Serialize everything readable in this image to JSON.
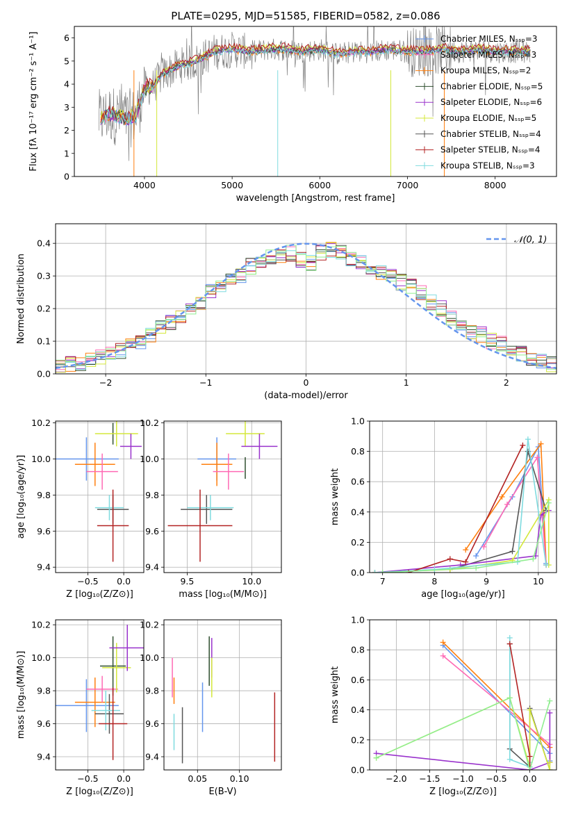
{
  "chart_data": [
    {
      "type": "line",
      "title": "PLATE=0295, MJD=51585, FIBERID=0582, z=0.086",
      "xlabel": "wavelength [Angstrom, rest frame]",
      "ylabel": "Flux [fλ 10⁻¹⁷ erg cm⁻² s⁻¹ A⁻¹]",
      "xlim": [
        3200,
        8700
      ],
      "ylim": [
        0,
        6.5
      ],
      "xticks": [
        4000,
        5000,
        6000,
        7000,
        8000
      ],
      "yticks": [
        0,
        1,
        2,
        3,
        4,
        5,
        6
      ],
      "grid": false,
      "legend_position": "right",
      "data_series": {
        "name": "",
        "color": "#808080",
        "x": [
          3500,
          3600,
          3700,
          3800,
          3900,
          4000,
          4100,
          4200,
          4400,
          4600,
          4800,
          5000,
          5200,
          5400,
          5600,
          5800,
          6000,
          6200,
          6400,
          6600,
          6800,
          7000,
          7200,
          7400,
          7600,
          7800,
          8000,
          8200,
          8400
        ],
        "y": [
          2.5,
          2.7,
          2.6,
          2.5,
          2.6,
          3.8,
          3.9,
          4.4,
          4.8,
          5.0,
          5.4,
          5.5,
          5.4,
          5.5,
          5.5,
          5.4,
          5.5,
          5.3,
          5.4,
          5.4,
          5.5,
          5.4,
          5.4,
          5.5,
          5.4,
          5.5,
          5.4,
          5.4,
          5.4
        ]
      },
      "models": [
        {
          "name": "Chabrier MILES, Nₛₛₚ=3",
          "color": "#6495ed",
          "scale": 1.0
        },
        {
          "name": "Salpeter MILES, Nₛₛₚ=3",
          "color": "#ff69b4",
          "scale": 1.0
        },
        {
          "name": "Kroupa MILES, Nₛₛₚ=2",
          "color": "#ff7f0e",
          "scale": 0.99
        },
        {
          "name": "Chabrier ELODIE, Nₛₛₚ=5",
          "color": "#2f4f2f",
          "scale": 1.0
        },
        {
          "name": "Salpeter ELODIE, Nₛₛₚ=6",
          "color": "#9932cc",
          "scale": 1.0
        },
        {
          "name": "Kroupa ELODIE, Nₛₛₚ=5",
          "color": "#d4e83a",
          "scale": 1.02
        },
        {
          "name": "Chabrier STELIB, Nₛₛₚ=4",
          "color": "#555555",
          "scale": 1.0
        },
        {
          "name": "Salpeter STELIB, Nₛₛₚ=4",
          "color": "#b22222",
          "scale": 1.03
        },
        {
          "name": "Kroupa STELIB, Nₛₛₚ=3",
          "color": "#7fdbdf",
          "scale": 0.99
        }
      ]
    },
    {
      "type": "histogram",
      "xlabel": "(data-model)/error",
      "ylabel": "Normed distribution",
      "xlim": [
        -2.5,
        2.5
      ],
      "ylim": [
        0,
        0.46
      ],
      "xticks": [
        -2,
        -1,
        0,
        1,
        2
      ],
      "yticks": [
        0.0,
        0.1,
        0.2,
        0.3,
        0.4
      ],
      "grid": true,
      "legend": [
        {
          "name": "𝒩(0, 1)",
          "color": "#6495ed",
          "style": "dashed"
        }
      ],
      "bins": [
        -2.5,
        -2.4,
        -2.3,
        -2.2,
        -2.1,
        -2.0,
        -1.9,
        -1.8,
        -1.7,
        -1.6,
        -1.5,
        -1.4,
        -1.3,
        -1.2,
        -1.1,
        -1.0,
        -0.9,
        -0.8,
        -0.7,
        -0.6,
        -0.5,
        -0.4,
        -0.3,
        -0.2,
        -0.1,
        0.0,
        0.1,
        0.2,
        0.3,
        0.4,
        0.5,
        0.6,
        0.7,
        0.8,
        0.9,
        1.0,
        1.1,
        1.2,
        1.3,
        1.4,
        1.5,
        1.6,
        1.7,
        1.8,
        1.9,
        2.0,
        2.1,
        2.2,
        2.3,
        2.4,
        2.5
      ],
      "base_density": [
        0.02,
        0.03,
        0.035,
        0.04,
        0.05,
        0.06,
        0.07,
        0.09,
        0.1,
        0.12,
        0.14,
        0.16,
        0.18,
        0.2,
        0.22,
        0.25,
        0.27,
        0.29,
        0.3,
        0.33,
        0.35,
        0.36,
        0.36,
        0.37,
        0.35,
        0.34,
        0.37,
        0.38,
        0.37,
        0.35,
        0.34,
        0.33,
        0.31,
        0.3,
        0.28,
        0.27,
        0.25,
        0.22,
        0.2,
        0.17,
        0.15,
        0.13,
        0.12,
        0.1,
        0.09,
        0.07,
        0.06,
        0.05,
        0.04,
        0.03
      ],
      "series_colors": [
        "#6495ed",
        "#ff69b4",
        "#ff7f0e",
        "#2f4f2f",
        "#9932cc",
        "#d4e83a",
        "#555555",
        "#b22222",
        "#7fdbdf",
        "#90ee90"
      ]
    },
    {
      "type": "scatter",
      "xlabel": "Z [log₁₀(Z/Z⊙)]",
      "ylabel": "age  [log₁₀(age/yr)]",
      "xlim": [
        -0.95,
        0.28
      ],
      "ylim": [
        9.37,
        10.21
      ],
      "xticks": [
        -0.5,
        0.0
      ],
      "yticks": [
        9.4,
        9.6,
        9.8,
        10.0,
        10.2
      ],
      "grid": true,
      "points": [
        {
          "color": "#6495ed",
          "x": -0.52,
          "y": 10.0,
          "xerr": 0.45,
          "yerr": 0.12
        },
        {
          "color": "#ff7f0e",
          "x": -0.4,
          "y": 9.97,
          "xerr": 0.28,
          "yerr": 0.12
        },
        {
          "color": "#ff69b4",
          "x": -0.3,
          "y": 9.93,
          "xerr": 0.22,
          "yerr": 0.1
        },
        {
          "color": "#2f4f2f",
          "x": -0.15,
          "y": 10.14,
          "xerr": 0.0,
          "yerr": 0.06
        },
        {
          "color": "#d4e83a",
          "x": -0.1,
          "y": 10.14,
          "xerr": 0.3,
          "yerr": 0.07
        },
        {
          "color": "#9932cc",
          "x": 0.1,
          "y": 10.07,
          "xerr": 0.15,
          "yerr": 0.07
        },
        {
          "color": "#555555",
          "x": -0.15,
          "y": 9.72,
          "xerr": 0.22,
          "yerr": 0.08
        },
        {
          "color": "#7fdbdf",
          "x": -0.2,
          "y": 9.73,
          "xerr": 0.2,
          "yerr": 0.07
        },
        {
          "color": "#b22222",
          "x": -0.15,
          "y": 9.63,
          "xerr": 0.22,
          "yerr": 0.2
        }
      ]
    },
    {
      "type": "scatter",
      "xlabel": "mass [log₁₀(M/M⊙)]",
      "ylabel": "",
      "xlim": [
        9.32,
        10.23
      ],
      "ylim": [
        9.37,
        10.21
      ],
      "xticks": [
        9.5,
        10.0
      ],
      "yticks": [
        9.4,
        9.6,
        9.8,
        10.0,
        10.2
      ],
      "grid": true,
      "points": [
        {
          "color": "#6495ed",
          "x": 9.73,
          "y": 10.0,
          "xerr": 0.15,
          "yerr": 0.12
        },
        {
          "color": "#ff7f0e",
          "x": 9.73,
          "y": 9.97,
          "xerr": 0.12,
          "yerr": 0.12
        },
        {
          "color": "#ff69b4",
          "x": 9.82,
          "y": 9.93,
          "xerr": 0.12,
          "yerr": 0.1
        },
        {
          "color": "#2f4f2f",
          "x": 9.95,
          "y": 9.95,
          "xerr": 0.0,
          "yerr": 0.06
        },
        {
          "color": "#d4e83a",
          "x": 9.95,
          "y": 10.14,
          "xerr": 0.15,
          "yerr": 0.07
        },
        {
          "color": "#9932cc",
          "x": 10.06,
          "y": 10.07,
          "xerr": 0.14,
          "yerr": 0.07
        },
        {
          "color": "#555555",
          "x": 9.65,
          "y": 9.72,
          "xerr": 0.2,
          "yerr": 0.08
        },
        {
          "color": "#7fdbdf",
          "x": 9.68,
          "y": 9.73,
          "xerr": 0.18,
          "yerr": 0.07
        },
        {
          "color": "#b22222",
          "x": 9.6,
          "y": 9.63,
          "xerr": 0.25,
          "yerr": 0.2
        }
      ]
    },
    {
      "type": "line",
      "xlabel": "age  [log₁₀(age/yr)]",
      "ylabel": "mass weight",
      "xlim": [
        6.75,
        10.35
      ],
      "ylim": [
        0,
        1.0
      ],
      "xticks": [
        7,
        8,
        9,
        10
      ],
      "yticks": [
        0.0,
        0.2,
        0.4,
        0.6,
        0.8,
        1.0
      ],
      "grid": true,
      "series": [
        {
          "color": "#6495ed",
          "x": [
            8.8,
            9.5,
            10.0,
            10.15
          ],
          "y": [
            0.11,
            0.5,
            0.83,
            0.06
          ]
        },
        {
          "color": "#ff7f0e",
          "x": [
            8.6,
            9.3,
            10.05,
            10.15
          ],
          "y": [
            0.15,
            0.5,
            0.85,
            0.05
          ]
        },
        {
          "color": "#ff69b4",
          "x": [
            8.95,
            9.4,
            9.98,
            10.15
          ],
          "y": [
            0.17,
            0.45,
            0.76,
            0.05
          ]
        },
        {
          "color": "#555555",
          "x": [
            8.3,
            9.5,
            9.8,
            10.15
          ],
          "y": [
            0.02,
            0.14,
            0.8,
            0.41
          ]
        },
        {
          "color": "#9932cc",
          "x": [
            6.85,
            8.5,
            9.95,
            10.05,
            10.2
          ],
          "y": [
            0.0,
            0.05,
            0.11,
            0.38,
            0.41
          ]
        },
        {
          "color": "#d4e83a",
          "x": [
            6.85,
            8.3,
            9.5,
            10.2,
            10.2
          ],
          "y": [
            0.0,
            0.02,
            0.08,
            0.48,
            0.05
          ]
        },
        {
          "color": "#7fdbdf",
          "x": [
            6.85,
            8.0,
            9.6,
            9.8,
            10.15
          ],
          "y": [
            0.0,
            0.02,
            0.07,
            0.88,
            0.05
          ]
        },
        {
          "color": "#b22222",
          "x": [
            7.5,
            8.3,
            8.6,
            9.7
          ],
          "y": [
            0.0,
            0.09,
            0.07,
            0.84
          ]
        },
        {
          "color": "#90ee90",
          "x": [
            7.0,
            8.8,
            9.9,
            10.2
          ],
          "y": [
            0.0,
            0.03,
            0.09,
            0.46
          ]
        }
      ]
    },
    {
      "type": "scatter",
      "xlabel": "Z [log₁₀(Z/Z⊙)]",
      "ylabel": "mass [log₁₀(M/M⊙)]",
      "xlim": [
        -0.95,
        0.28
      ],
      "ylim": [
        9.32,
        10.23
      ],
      "xticks": [
        -0.5,
        0.0
      ],
      "yticks": [
        9.4,
        9.6,
        9.8,
        10.0,
        10.2
      ],
      "grid": true,
      "points": [
        {
          "color": "#6495ed",
          "x": -0.52,
          "y": 9.71,
          "xerr": 0.45,
          "yerr": 0.16
        },
        {
          "color": "#ff7f0e",
          "x": -0.4,
          "y": 9.73,
          "xerr": 0.28,
          "yerr": 0.15
        },
        {
          "color": "#ff69b4",
          "x": -0.3,
          "y": 9.81,
          "xerr": 0.22,
          "yerr": 0.08
        },
        {
          "color": "#2f4f2f",
          "x": -0.15,
          "y": 9.95,
          "xerr": 0.18,
          "yerr": 0.18
        },
        {
          "color": "#d4e83a",
          "x": -0.1,
          "y": 9.94,
          "xerr": 0.2,
          "yerr": 0.15
        },
        {
          "color": "#9932cc",
          "x": 0.05,
          "y": 10.06,
          "xerr": 0.25,
          "yerr": 0.14
        },
        {
          "color": "#555555",
          "x": -0.2,
          "y": 9.66,
          "xerr": 0.2,
          "yerr": 0.12
        },
        {
          "color": "#7fdbdf",
          "x": -0.25,
          "y": 9.68,
          "xerr": 0.2,
          "yerr": 0.12
        },
        {
          "color": "#b22222",
          "x": -0.15,
          "y": 9.6,
          "xerr": 0.2,
          "yerr": 0.22
        }
      ]
    },
    {
      "type": "scatter",
      "xlabel": "E(B-V)",
      "ylabel": "",
      "xlim": [
        0.01,
        0.15
      ],
      "ylim": [
        9.32,
        10.23
      ],
      "xticks": [
        0.05,
        0.1
      ],
      "yticks": [
        9.4,
        9.6,
        9.8,
        10.0,
        10.2
      ],
      "grid": true,
      "points": [
        {
          "color": "#ff69b4",
          "x": 0.02,
          "y": 9.88,
          "xerr": 0,
          "yerr": 0.12
        },
        {
          "color": "#ff7f0e",
          "x": 0.022,
          "y": 9.8,
          "xerr": 0,
          "yerr": 0.08
        },
        {
          "color": "#7fdbdf",
          "x": 0.022,
          "y": 9.55,
          "xerr": 0,
          "yerr": 0.11
        },
        {
          "color": "#555555",
          "x": 0.032,
          "y": 9.53,
          "xerr": 0,
          "yerr": 0.17
        },
        {
          "color": "#6495ed",
          "x": 0.056,
          "y": 9.7,
          "xerr": 0,
          "yerr": 0.15
        },
        {
          "color": "#2f4f2f",
          "x": 0.064,
          "y": 9.98,
          "xerr": 0,
          "yerr": 0.15
        },
        {
          "color": "#9932cc",
          "x": 0.067,
          "y": 10.0,
          "xerr": 0,
          "yerr": 0.12
        },
        {
          "color": "#d4e83a",
          "x": 0.067,
          "y": 9.88,
          "xerr": 0,
          "yerr": 0.12
        },
        {
          "color": "#b22222",
          "x": 0.142,
          "y": 9.58,
          "xerr": 0,
          "yerr": 0.21
        }
      ]
    },
    {
      "type": "line",
      "xlabel": "Z [log₁₀(Z/Z⊙)]",
      "ylabel": "mass weight",
      "xlim": [
        -2.4,
        0.4
      ],
      "ylim": [
        0,
        1.0
      ],
      "xticks": [
        -2.0,
        -1.5,
        -1.0,
        -0.5,
        0.0
      ],
      "yticks": [
        0.0,
        0.2,
        0.4,
        0.6,
        0.8,
        1.0
      ],
      "grid": true,
      "series": [
        {
          "color": "#6495ed",
          "x": [
            -1.3,
            0.3,
            0.3
          ],
          "y": [
            0.83,
            0.11,
            0.06
          ]
        },
        {
          "color": "#ff7f0e",
          "x": [
            -1.3,
            0.3,
            0.3
          ],
          "y": [
            0.85,
            0.15,
            0.05
          ]
        },
        {
          "color": "#ff69b4",
          "x": [
            -1.3,
            0.3,
            0.3
          ],
          "y": [
            0.76,
            0.17,
            0.05
          ]
        },
        {
          "color": "#555555",
          "x": [
            -0.3,
            -0.3,
            0.0,
            0.0,
            0.3
          ],
          "y": [
            0.84,
            0.14,
            0.02,
            0.41,
            0.0
          ]
        },
        {
          "color": "#9932cc",
          "x": [
            -2.3,
            0.0,
            0.3,
            0.3
          ],
          "y": [
            0.11,
            0.0,
            0.05,
            0.38
          ]
        },
        {
          "color": "#d4e83a",
          "x": [
            -2.3,
            -0.3,
            0.0,
            0.0,
            0.3,
            0.3
          ],
          "y": [
            0.08,
            0.48,
            0.02,
            0.4,
            0.0,
            0.05
          ]
        },
        {
          "color": "#7fdbdf",
          "x": [
            -0.3,
            -0.3,
            0.0,
            0.0
          ],
          "y": [
            0.88,
            0.07,
            0.02,
            0.05
          ]
        },
        {
          "color": "#b22222",
          "x": [
            -0.3,
            0.0,
            0.0
          ],
          "y": [
            0.84,
            0.09,
            0.0
          ]
        },
        {
          "color": "#90ee90",
          "x": [
            -2.3,
            -0.3,
            0.0,
            0.3
          ],
          "y": [
            0.08,
            0.48,
            0.0,
            0.46
          ]
        }
      ]
    }
  ]
}
